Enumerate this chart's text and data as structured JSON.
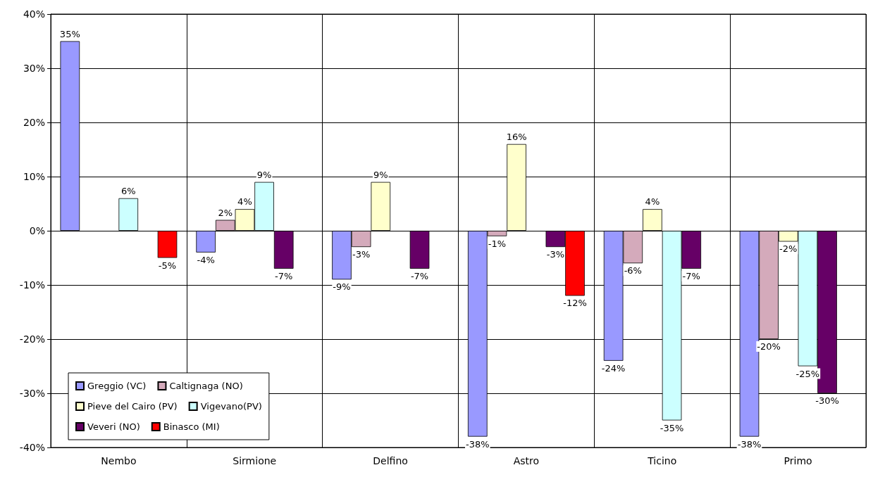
{
  "chart_data": {
    "type": "bar",
    "categories": [
      "Nembo",
      "Sirmione",
      "Delfino",
      "Astro",
      "Ticino",
      "Primo"
    ],
    "series": [
      {
        "name": "Greggio (VC)",
        "color": "#9999ff",
        "values": [
          35,
          -4,
          -9,
          -38,
          -24,
          -38
        ],
        "value_labels": [
          "35%",
          "-4%",
          "-9%",
          "-38%",
          "-24%",
          "-38%"
        ]
      },
      {
        "name": "Caltignaga (NO)",
        "color": "#d4aabb",
        "values": [
          null,
          2,
          -3,
          -1,
          -6,
          -20
        ],
        "value_labels": [
          null,
          "2%",
          "-3%",
          "-1%",
          "-6%",
          "-20%"
        ]
      },
      {
        "name": "Pieve del Cairo (PV)",
        "color": "#ffffcc",
        "values": [
          null,
          4,
          9,
          16,
          4,
          -2
        ],
        "value_labels": [
          null,
          "4%",
          "9%",
          "16%",
          "4%",
          "-2%"
        ]
      },
      {
        "name": "Vigevano(PV)",
        "color": "#ccffff",
        "values": [
          6,
          9,
          null,
          null,
          -35,
          -25
        ],
        "value_labels": [
          "6%",
          "9%",
          null,
          null,
          "-35%",
          "-25%"
        ]
      },
      {
        "name": "Veveri (NO)",
        "color": "#660066",
        "values": [
          null,
          -7,
          -7,
          -3,
          -7,
          -30
        ],
        "value_labels": [
          null,
          "-7%",
          "-7%",
          "-3%",
          "-7%",
          "-30%"
        ]
      },
      {
        "name": "Binasco (MI)",
        "color": "#ff0000",
        "values": [
          -5,
          null,
          null,
          -12,
          null,
          null
        ],
        "value_labels": [
          "-5%",
          null,
          null,
          "-12%",
          null,
          null
        ]
      }
    ],
    "ylim": [
      -40,
      40
    ],
    "yticks": [
      {
        "value": -40,
        "label": "-40%"
      },
      {
        "value": -30,
        "label": "-30%"
      },
      {
        "value": -20,
        "label": "-20%"
      },
      {
        "value": -10,
        "label": "-10%"
      },
      {
        "value": 0,
        "label": "0%"
      },
      {
        "value": 10,
        "label": "10%"
      },
      {
        "value": 20,
        "label": "20%"
      },
      {
        "value": 30,
        "label": "30%"
      },
      {
        "value": 40,
        "label": "40%"
      }
    ],
    "grid": true,
    "legend": "bottom left"
  }
}
